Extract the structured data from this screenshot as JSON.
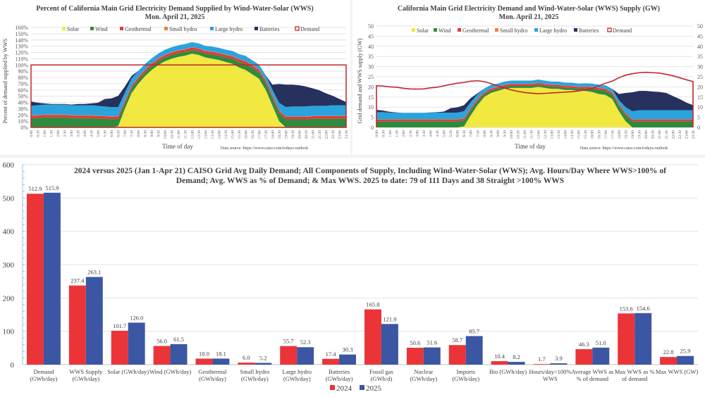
{
  "colors": {
    "solar": "#f1e840",
    "wind": "#2e8b3e",
    "geothermal": "#e53935",
    "small_hydro": "#f07f3c",
    "large_hydro": "#2ba3dc",
    "batteries": "#26315e",
    "demand": "#c0272d",
    "y2024": "#ea3438",
    "y2025": "#3b56a3"
  },
  "chart_data": [
    {
      "id": "pct-chart",
      "type": "area",
      "title": "Percent of California Main Grid Electricity Demand Supplied by Wind-Water-Solar (WWS)",
      "subtitle": "Mon. April 21, 2025",
      "xlabel": "Time of day",
      "ylabel": "Percent of demand supplied by WWS",
      "source": "Data source: https://www.caiso.com/todays-outlook",
      "ylim": [
        0,
        160
      ],
      "yticks": [
        "0%",
        "10%",
        "20%",
        "30%",
        "40%",
        "50%",
        "60%",
        "70%",
        "80%",
        "90%",
        "100%",
        "110%",
        "120%",
        "130%",
        "140%",
        "150%",
        "160%"
      ],
      "legend": [
        "Solar",
        "Wind",
        "Geothermal",
        "Small hydro",
        "Large hydro",
        "Batteries",
        "Demand"
      ],
      "legend_position": "top",
      "grid": true,
      "x": [
        "0:00",
        "0:30",
        "1:00",
        "1:30",
        "2:00",
        "2:30",
        "3:00",
        "3:30",
        "4:00",
        "4:30",
        "5:00",
        "5:30",
        "6:00",
        "6:30",
        "7:00",
        "7:30",
        "8:00",
        "8:30",
        "9:00",
        "9:30",
        "10:00",
        "10:30",
        "11:00",
        "11:30",
        "12:00",
        "12:30",
        "13:00",
        "13:30",
        "14:00",
        "14:30",
        "15:00",
        "15:30",
        "16:00",
        "16:30",
        "17:00",
        "17:30",
        "18:00",
        "18:30",
        "19:00",
        "19:30",
        "20:00",
        "20:30",
        "21:00",
        "21:30",
        "22:00",
        "22:30",
        "23:00",
        "23:30"
      ],
      "series": [
        {
          "name": "Solar",
          "values": [
            0,
            0,
            0,
            0,
            0,
            0,
            0,
            0,
            0,
            0,
            0,
            0,
            0,
            2,
            30,
            55,
            70,
            82,
            92,
            100,
            106,
            110,
            113,
            115,
            118,
            116,
            112,
            110,
            108,
            105,
            102,
            96,
            92,
            85,
            78,
            60,
            35,
            10,
            0,
            0,
            0,
            0,
            0,
            0,
            0,
            0,
            0,
            0
          ]
        },
        {
          "name": "Wind",
          "values": [
            15,
            15,
            16,
            16,
            16,
            16,
            15,
            15,
            15,
            15,
            14,
            14,
            13,
            12,
            8,
            7,
            6,
            6,
            6,
            6,
            6,
            6,
            6,
            6,
            6,
            6,
            6,
            7,
            7,
            7,
            8,
            9,
            10,
            10,
            10,
            11,
            12,
            13,
            13,
            13,
            13,
            13,
            14,
            14,
            14,
            14,
            14,
            14
          ]
        },
        {
          "name": "Geothermal",
          "values": [
            4,
            4,
            4,
            4,
            4,
            4,
            4,
            4,
            4,
            4,
            4,
            4,
            4,
            4,
            4,
            4,
            4,
            4,
            4,
            4,
            4,
            4,
            4,
            4,
            4,
            4,
            4,
            4,
            4,
            4,
            4,
            4,
            4,
            4,
            4,
            4,
            4,
            4,
            4,
            4,
            4,
            4,
            4,
            4,
            4,
            4,
            4,
            4
          ]
        },
        {
          "name": "Small hydro",
          "values": [
            0.5,
            0.5,
            0.5,
            0.5,
            0.5,
            0.5,
            0.5,
            0.5,
            0.5,
            0.5,
            0.5,
            0.5,
            0.5,
            0.5,
            0.5,
            0.5,
            0.5,
            0.5,
            0.5,
            0.5,
            0.5,
            0.5,
            0.5,
            0.5,
            0.5,
            0.5,
            0.5,
            0.5,
            0.5,
            0.5,
            0.5,
            0.5,
            0.5,
            0.5,
            0.5,
            0.5,
            0.5,
            0.5,
            0.5,
            0.5,
            0.5,
            0.5,
            0.5,
            0.5,
            0.5,
            0.5,
            0.5,
            0.5
          ]
        },
        {
          "name": "Large hydro",
          "values": [
            15,
            16,
            16,
            16,
            16,
            16,
            16,
            16,
            16,
            16,
            16,
            15,
            15,
            14,
            13,
            12,
            10,
            9,
            8,
            8,
            8,
            8,
            8,
            8,
            8,
            8,
            8,
            8,
            8,
            8,
            8,
            8,
            8,
            8,
            8,
            8,
            9,
            12,
            15,
            16,
            16,
            16,
            16,
            16,
            16,
            17,
            17,
            17
          ]
        },
        {
          "name": "Batteries",
          "values": [
            7,
            4,
            2,
            1,
            1,
            1,
            1,
            2,
            2,
            3,
            5,
            12,
            14,
            18,
            10,
            4,
            0,
            0,
            0,
            0,
            0,
            0,
            0,
            0,
            0,
            0,
            0,
            0,
            0,
            0,
            0,
            0,
            0,
            0,
            0,
            0,
            8,
            30,
            36,
            35,
            34,
            32,
            28,
            25,
            20,
            15,
            10,
            5
          ]
        },
        {
          "name": "Demand",
          "values": [
            100,
            100,
            100,
            100,
            100,
            100,
            100,
            100,
            100,
            100,
            100,
            100,
            100,
            100,
            100,
            100,
            100,
            100,
            100,
            100,
            100,
            100,
            100,
            100,
            100,
            100,
            100,
            100,
            100,
            100,
            100,
            100,
            100,
            100,
            100,
            100,
            100,
            100,
            100,
            100,
            100,
            100,
            100,
            100,
            100,
            100,
            100,
            100
          ]
        }
      ]
    },
    {
      "id": "gw-chart",
      "type": "area",
      "title": "California Main Grid Electricity Demand and Wind-Water-Solar (WWS) Supply (GW)",
      "subtitle": "Mon. April 21, 2025",
      "xlabel": "Time of day",
      "ylabel": "Grid demand and WWS supply (GW)",
      "source": "Data source: https://www.caiso.com/todays-outlook",
      "ylim": [
        0,
        50
      ],
      "yticks": [
        "0",
        "5",
        "10",
        "15",
        "20",
        "25",
        "30",
        "35",
        "40",
        "45",
        "50"
      ],
      "legend": [
        "Solar",
        "Wind",
        "Geothermal",
        "Small hydro",
        "Large hydro",
        "Batteries",
        "Demand"
      ],
      "legend_position": "top",
      "grid": true,
      "x": [
        "0:00",
        "0:30",
        "1:00",
        "1:30",
        "2:00",
        "2:30",
        "3:00",
        "3:30",
        "4:00",
        "4:30",
        "5:00",
        "5:30",
        "6:00",
        "6:30",
        "7:00",
        "7:30",
        "8:00",
        "8:30",
        "9:00",
        "9:30",
        "10:00",
        "10:30",
        "11:00",
        "11:30",
        "12:00",
        "12:30",
        "13:00",
        "13:30",
        "14:00",
        "14:30",
        "15:00",
        "15:30",
        "16:00",
        "16:30",
        "17:00",
        "17:30",
        "18:00",
        "18:30",
        "19:00",
        "19:30",
        "20:00",
        "20:30",
        "21:00",
        "21:30",
        "22:00",
        "22:30",
        "23:00",
        "23:30"
      ],
      "series": [
        {
          "name": "Solar",
          "values": [
            0,
            0,
            0,
            0,
            0,
            0,
            0,
            0,
            0,
            0,
            0,
            0,
            0,
            0.5,
            6,
            11,
            15,
            17,
            18,
            19,
            19.5,
            19.5,
            19.5,
            19.5,
            20,
            19.5,
            19,
            19,
            18.5,
            18.5,
            18,
            18,
            17.5,
            16.5,
            16,
            14,
            8,
            3,
            0,
            0,
            0,
            0,
            0,
            0,
            0,
            0,
            0,
            0
          ]
        },
        {
          "name": "Wind",
          "values": [
            3,
            3,
            3,
            3,
            3,
            3,
            3,
            3,
            3,
            3,
            3,
            3,
            3,
            3,
            2.5,
            2,
            1.2,
            1.2,
            1,
            1,
            1,
            1,
            1,
            1,
            1,
            1,
            1,
            1,
            1,
            1,
            1,
            1.2,
            1.5,
            2,
            2.2,
            2.3,
            2.5,
            3,
            3,
            3,
            3,
            3,
            3,
            3,
            3,
            3,
            3,
            3
          ]
        },
        {
          "name": "Geothermal",
          "values": [
            0.9,
            0.9,
            0.9,
            0.9,
            0.9,
            0.9,
            0.9,
            0.9,
            0.9,
            0.9,
            0.9,
            0.9,
            0.9,
            0.9,
            0.9,
            0.9,
            0.9,
            0.9,
            0.9,
            0.9,
            0.9,
            0.9,
            0.9,
            0.9,
            0.9,
            0.9,
            0.9,
            0.9,
            0.9,
            0.9,
            0.9,
            0.9,
            0.9,
            0.9,
            0.9,
            0.9,
            0.9,
            0.9,
            0.9,
            0.9,
            0.9,
            0.9,
            0.9,
            0.9,
            0.9,
            0.9,
            0.9,
            0.9
          ]
        },
        {
          "name": "Small hydro",
          "values": [
            0.1,
            0.1,
            0.1,
            0.1,
            0.1,
            0.1,
            0.1,
            0.1,
            0.1,
            0.1,
            0.1,
            0.1,
            0.1,
            0.1,
            0.1,
            0.1,
            0.1,
            0.1,
            0.1,
            0.1,
            0.1,
            0.1,
            0.1,
            0.1,
            0.1,
            0.1,
            0.1,
            0.1,
            0.1,
            0.1,
            0.1,
            0.1,
            0.1,
            0.1,
            0.1,
            0.1,
            0.1,
            0.1,
            0.1,
            0.1,
            0.1,
            0.1,
            0.1,
            0.1,
            0.1,
            0.1,
            0.1,
            0.1
          ]
        },
        {
          "name": "Large hydro",
          "values": [
            3.5,
            3.5,
            3.3,
            3.2,
            3.2,
            3.2,
            3.2,
            3.2,
            3.3,
            3.3,
            3.3,
            3.3,
            3.3,
            3.5,
            3,
            2.3,
            2,
            1.8,
            1.6,
            1.6,
            1.6,
            1.6,
            1.6,
            1.6,
            1.6,
            1.6,
            1.6,
            1.6,
            1.6,
            1.6,
            1.6,
            1.6,
            1.6,
            1.6,
            1.6,
            1.7,
            2,
            3,
            4,
            4.5,
            4.5,
            4.5,
            4.5,
            4.5,
            4.5,
            4.5,
            4.5,
            4.5
          ]
        },
        {
          "name": "Batteries",
          "values": [
            1.2,
            0.8,
            0.4,
            0.2,
            0,
            0,
            0,
            0,
            0.1,
            0.2,
            0.5,
            2.2,
            2.6,
            3,
            2,
            0.5,
            0,
            0,
            0,
            0,
            0,
            0,
            0,
            0,
            0,
            0,
            0,
            0,
            0,
            0,
            0,
            0,
            0,
            0,
            0,
            0,
            3,
            7,
            9.3,
            9.5,
            9.5,
            9.2,
            9,
            8.5,
            7,
            5.5,
            3.8,
            2.5
          ]
        },
        {
          "name": "Demand",
          "values": [
            20.6,
            20.4,
            20,
            19.8,
            19.3,
            19,
            18.9,
            19,
            19.5,
            19.8,
            20.5,
            21.2,
            21.8,
            22.2,
            22.8,
            23,
            22.6,
            21.6,
            20.5,
            19.5,
            18.5,
            17.8,
            17.2,
            16.9,
            16.6,
            16.8,
            17,
            17.2,
            17.4,
            17.6,
            18,
            18.5,
            19.2,
            20.5,
            21.8,
            22.8,
            24.5,
            25.8,
            26.5,
            27,
            27.2,
            27,
            26.8,
            26.2,
            25.5,
            24.5,
            23.5,
            22.6
          ]
        }
      ]
    },
    {
      "id": "bar-chart",
      "type": "bar",
      "title": "2024 versus 2025 (Jan 1-Apr 21) CAISO Grid Avg Daily Demand; All Components of Supply, Including Wind-Water-Solar (WWS); Avg. Hours/Day Where WWS>100% of Demand; Avg. WWS as % of Demand; & Max WWS. 2025 to date: 79 of 111 Days and 38 Straight >100% WWS",
      "title_lines": [
        "2024 versus 2025 (Jan 1-Apr 21) CAISO Grid Avg Daily Demand; All Components of Supply, Including Wind-Water-Solar (WWS); Avg. Hours/Day Where WWS>100% of",
        "Demand; Avg. WWS as % of Demand; & Max WWS. 2025 to date: 79 of 111 Days and 38 Straight >100% WWS"
      ],
      "xlabel": "",
      "ylabel": "",
      "ylim": [
        0,
        600
      ],
      "yticks": [
        "0",
        "100",
        "200",
        "300",
        "400",
        "500",
        "600"
      ],
      "grid": true,
      "legend_position": "bottom-center",
      "categories": [
        [
          "Demand",
          "(GWh/day)"
        ],
        [
          "WWS Supply",
          "(GWh/day)"
        ],
        [
          "Solar (GWh/day)"
        ],
        [
          "Wind (GWh/day)"
        ],
        [
          "Geothermal",
          "(GWh/day)"
        ],
        [
          "Small hydro",
          "(GWh/day)"
        ],
        [
          "Large hydro",
          "(GWh/day)"
        ],
        [
          "Batteries",
          "(GWh/day)"
        ],
        [
          "Fossil gas",
          "(GWh/d)"
        ],
        [
          "Nuclear",
          "(GWh/day)"
        ],
        [
          "Imports",
          "(GWh/day)"
        ],
        [
          "Bio (GWh/day)"
        ],
        [
          "Hours/day>100%",
          "WWS"
        ],
        [
          "Average WWS as",
          "% of demand"
        ],
        [
          "Max WWS as %",
          "of demand"
        ],
        [
          "Max WWS (GW)"
        ]
      ],
      "series": [
        {
          "name": "2024",
          "values": [
            512.9,
            237.4,
            101.7,
            56.0,
            18.0,
            6.0,
            55.7,
            17.4,
            165.8,
            50.6,
            58.7,
            10.4,
            1.7,
            46.3,
            153.6,
            22.8
          ],
          "labels": [
            "512.9",
            "237.4",
            "101.7",
            "56.0",
            "18.0",
            "6.0",
            "55.7",
            "17.4",
            "165.8",
            "50.6",
            "58.7",
            "10.4",
            "1.7",
            "46.3",
            "153.6",
            "22.8"
          ]
        },
        {
          "name": "2025",
          "values": [
            515.9,
            263.1,
            126.0,
            61.5,
            18.1,
            5.2,
            52.3,
            30.3,
            121.9,
            51.6,
            85.7,
            8.2,
            3.9,
            51.0,
            154.6,
            25.9
          ],
          "labels": [
            "515.9",
            "263.1",
            "126.0",
            "61.5",
            "18.1",
            "5.2",
            "52.3",
            "30.3",
            "121.9",
            "51.6",
            "85.7",
            "8.2",
            "3.9",
            "51.0",
            "154.6",
            "25.9"
          ]
        }
      ]
    }
  ]
}
